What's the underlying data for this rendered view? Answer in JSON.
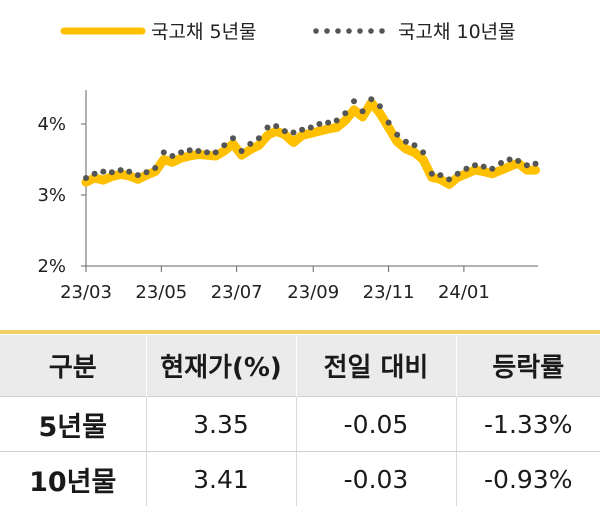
{
  "chart_data": {
    "type": "line",
    "x_ticks": [
      "23/03",
      "23/05",
      "23/07",
      "23/09",
      "23/11",
      "24/01"
    ],
    "y_ticks": [
      "2%",
      "3%",
      "4%"
    ],
    "ylim": [
      2,
      4.6
    ],
    "x_range": [
      "2023-03-01",
      "2024-03-01"
    ],
    "grid": false,
    "legend_position": "top",
    "series": [
      {
        "name": "국고채 5년물",
        "style": "solid-thick",
        "color": "#FFC000",
        "x": [
          "2023-03-01",
          "2023-03-08",
          "2023-03-15",
          "2023-03-22",
          "2023-03-29",
          "2023-04-05",
          "2023-04-12",
          "2023-04-19",
          "2023-04-26",
          "2023-05-03",
          "2023-05-10",
          "2023-05-17",
          "2023-05-24",
          "2023-05-31",
          "2023-06-07",
          "2023-06-14",
          "2023-06-21",
          "2023-06-28",
          "2023-07-05",
          "2023-07-12",
          "2023-07-19",
          "2023-07-26",
          "2023-08-02",
          "2023-08-09",
          "2023-08-16",
          "2023-08-23",
          "2023-08-30",
          "2023-09-06",
          "2023-09-13",
          "2023-09-20",
          "2023-09-27",
          "2023-10-04",
          "2023-10-11",
          "2023-10-18",
          "2023-10-25",
          "2023-11-01",
          "2023-11-08",
          "2023-11-15",
          "2023-11-22",
          "2023-11-29",
          "2023-12-06",
          "2023-12-13",
          "2023-12-20",
          "2023-12-27",
          "2024-01-03",
          "2024-01-10",
          "2024-01-17",
          "2024-01-24",
          "2024-01-31",
          "2024-02-07",
          "2024-02-14",
          "2024-02-21",
          "2024-02-28"
        ],
        "values": [
          3.18,
          3.24,
          3.21,
          3.26,
          3.29,
          3.27,
          3.22,
          3.28,
          3.33,
          3.5,
          3.46,
          3.52,
          3.55,
          3.57,
          3.56,
          3.55,
          3.62,
          3.72,
          3.56,
          3.64,
          3.7,
          3.84,
          3.9,
          3.85,
          3.74,
          3.84,
          3.87,
          3.9,
          3.93,
          3.95,
          4.05,
          4.2,
          4.1,
          4.3,
          4.15,
          3.95,
          3.75,
          3.65,
          3.6,
          3.5,
          3.25,
          3.22,
          3.15,
          3.25,
          3.3,
          3.35,
          3.33,
          3.3,
          3.35,
          3.4,
          3.45,
          3.35,
          3.35
        ]
      },
      {
        "name": "국고채 10년물",
        "style": "dotted",
        "color": "#555555",
        "x": [
          "2023-03-01",
          "2023-03-08",
          "2023-03-15",
          "2023-03-22",
          "2023-03-29",
          "2023-04-05",
          "2023-04-12",
          "2023-04-19",
          "2023-04-26",
          "2023-05-03",
          "2023-05-10",
          "2023-05-17",
          "2023-05-24",
          "2023-05-31",
          "2023-06-07",
          "2023-06-14",
          "2023-06-21",
          "2023-06-28",
          "2023-07-05",
          "2023-07-12",
          "2023-07-19",
          "2023-07-26",
          "2023-08-02",
          "2023-08-09",
          "2023-08-16",
          "2023-08-23",
          "2023-08-30",
          "2023-09-06",
          "2023-09-13",
          "2023-09-20",
          "2023-09-27",
          "2023-10-04",
          "2023-10-11",
          "2023-10-18",
          "2023-10-25",
          "2023-11-01",
          "2023-11-08",
          "2023-11-15",
          "2023-11-22",
          "2023-11-29",
          "2023-12-06",
          "2023-12-13",
          "2023-12-20",
          "2023-12-27",
          "2024-01-03",
          "2024-01-10",
          "2024-01-17",
          "2024-01-24",
          "2024-01-31",
          "2024-02-07",
          "2024-02-14",
          "2024-02-21",
          "2024-02-28"
        ],
        "values": [
          3.24,
          3.3,
          3.33,
          3.32,
          3.35,
          3.33,
          3.28,
          3.32,
          3.38,
          3.6,
          3.55,
          3.6,
          3.63,
          3.62,
          3.6,
          3.6,
          3.7,
          3.8,
          3.62,
          3.72,
          3.8,
          3.95,
          3.97,
          3.9,
          3.88,
          3.92,
          3.95,
          4.0,
          4.02,
          4.05,
          4.15,
          4.32,
          4.18,
          4.35,
          4.25,
          4.02,
          3.85,
          3.75,
          3.7,
          3.6,
          3.3,
          3.28,
          3.22,
          3.3,
          3.37,
          3.42,
          3.4,
          3.37,
          3.45,
          3.5,
          3.48,
          3.42,
          3.44
        ]
      }
    ]
  },
  "table": {
    "headers": [
      "구분",
      "현재가(%)",
      "전일 대비",
      "등락률"
    ],
    "rows": [
      [
        "5년물",
        "3.35",
        "-0.05",
        "-1.33%"
      ],
      [
        "10년물",
        "3.41",
        "-0.03",
        "-0.93%"
      ]
    ]
  }
}
